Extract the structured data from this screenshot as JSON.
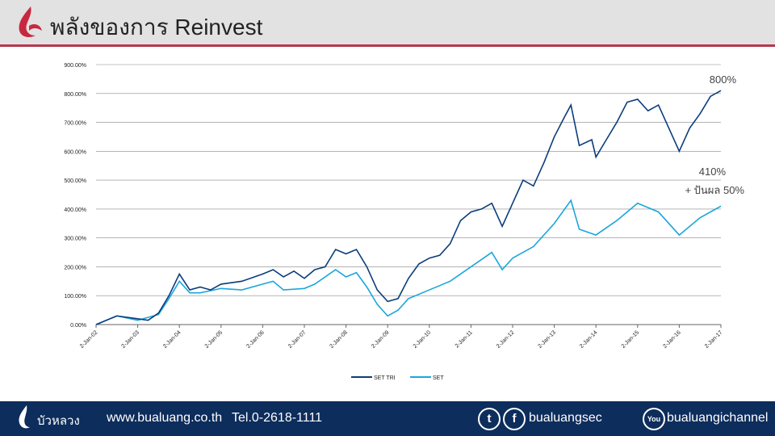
{
  "header": {
    "title": "พลังของการ Reinvest"
  },
  "footer": {
    "brand": "บัวหลวง",
    "website": "www.bualuang.co.th",
    "tel": "Tel.0-2618-1111",
    "social": "bualuangsec",
    "youtube": "bualuangichannel"
  },
  "colors": {
    "set_tri": "#0b3d7c",
    "set": "#1aa6dc",
    "accent": "#b5384d",
    "footer_bg": "#0d2d5c"
  },
  "chart_data": {
    "type": "line",
    "ylim": [
      0,
      900
    ],
    "y_ticks": [
      "0.00%",
      "100.00%",
      "200.00%",
      "300.00%",
      "400.00%",
      "500.00%",
      "600.00%",
      "700.00%",
      "800.00%",
      "900.00%"
    ],
    "x_ticks": [
      "2-Jan-02",
      "2-Jan-03",
      "2-Jan-04",
      "2-Jan-05",
      "2-Jan-06",
      "2-Jan-07",
      "2-Jan-08",
      "2-Jan-09",
      "2-Jan-10",
      "2-Jan-11",
      "2-Jan-12",
      "2-Jan-13",
      "2-Jan-14",
      "2-Jan-15",
      "2-Jan-16",
      "2-Jan-17"
    ],
    "legend": "bottom",
    "grid": true,
    "annotations": [
      "800%",
      "410%",
      "+ ปันผล 50%"
    ],
    "series": [
      {
        "name": "SET TRI",
        "points": [
          [
            2002,
            0
          ],
          [
            2002.5,
            30
          ],
          [
            2003,
            20
          ],
          [
            2003.25,
            15
          ],
          [
            2003.5,
            40
          ],
          [
            2003.75,
            100
          ],
          [
            2004,
            175
          ],
          [
            2004.25,
            120
          ],
          [
            2004.5,
            130
          ],
          [
            2004.75,
            120
          ],
          [
            2005,
            140
          ],
          [
            2005.5,
            150
          ],
          [
            2006,
            175
          ],
          [
            2006.25,
            190
          ],
          [
            2006.5,
            165
          ],
          [
            2006.75,
            185
          ],
          [
            2007,
            160
          ],
          [
            2007.25,
            190
          ],
          [
            2007.5,
            200
          ],
          [
            2007.75,
            260
          ],
          [
            2008,
            245
          ],
          [
            2008.25,
            260
          ],
          [
            2008.5,
            200
          ],
          [
            2008.75,
            120
          ],
          [
            2009,
            80
          ],
          [
            2009.25,
            90
          ],
          [
            2009.5,
            160
          ],
          [
            2009.75,
            210
          ],
          [
            2010,
            230
          ],
          [
            2010.25,
            240
          ],
          [
            2010.5,
            280
          ],
          [
            2010.75,
            360
          ],
          [
            2011,
            390
          ],
          [
            2011.25,
            400
          ],
          [
            2011.5,
            420
          ],
          [
            2011.75,
            340
          ],
          [
            2012,
            420
          ],
          [
            2012.25,
            500
          ],
          [
            2012.5,
            480
          ],
          [
            2012.75,
            560
          ],
          [
            2013,
            650
          ],
          [
            2013.25,
            720
          ],
          [
            2013.4,
            760
          ],
          [
            2013.6,
            620
          ],
          [
            2013.9,
            640
          ],
          [
            2014,
            580
          ],
          [
            2014.25,
            640
          ],
          [
            2014.5,
            700
          ],
          [
            2014.75,
            770
          ],
          [
            2015,
            780
          ],
          [
            2015.25,
            740
          ],
          [
            2015.5,
            760
          ],
          [
            2015.75,
            680
          ],
          [
            2016,
            600
          ],
          [
            2016.25,
            680
          ],
          [
            2016.5,
            730
          ],
          [
            2016.75,
            790
          ],
          [
            2017,
            810
          ]
        ]
      },
      {
        "name": "SET",
        "points": [
          [
            2002,
            0
          ],
          [
            2002.5,
            30
          ],
          [
            2003,
            15
          ],
          [
            2003.5,
            35
          ],
          [
            2003.75,
            90
          ],
          [
            2004,
            150
          ],
          [
            2004.25,
            110
          ],
          [
            2004.5,
            110
          ],
          [
            2005,
            125
          ],
          [
            2005.5,
            120
          ],
          [
            2006,
            140
          ],
          [
            2006.25,
            150
          ],
          [
            2006.5,
            120
          ],
          [
            2007,
            125
          ],
          [
            2007.25,
            140
          ],
          [
            2007.75,
            190
          ],
          [
            2008,
            165
          ],
          [
            2008.25,
            180
          ],
          [
            2008.5,
            130
          ],
          [
            2008.75,
            70
          ],
          [
            2009,
            30
          ],
          [
            2009.25,
            50
          ],
          [
            2009.5,
            90
          ],
          [
            2010,
            120
          ],
          [
            2010.5,
            150
          ],
          [
            2011,
            200
          ],
          [
            2011.5,
            250
          ],
          [
            2011.75,
            190
          ],
          [
            2012,
            230
          ],
          [
            2012.5,
            270
          ],
          [
            2013,
            350
          ],
          [
            2013.4,
            430
          ],
          [
            2013.6,
            330
          ],
          [
            2014,
            310
          ],
          [
            2014.5,
            360
          ],
          [
            2015,
            420
          ],
          [
            2015.5,
            390
          ],
          [
            2016,
            310
          ],
          [
            2016.5,
            370
          ],
          [
            2017,
            410
          ]
        ]
      }
    ]
  }
}
